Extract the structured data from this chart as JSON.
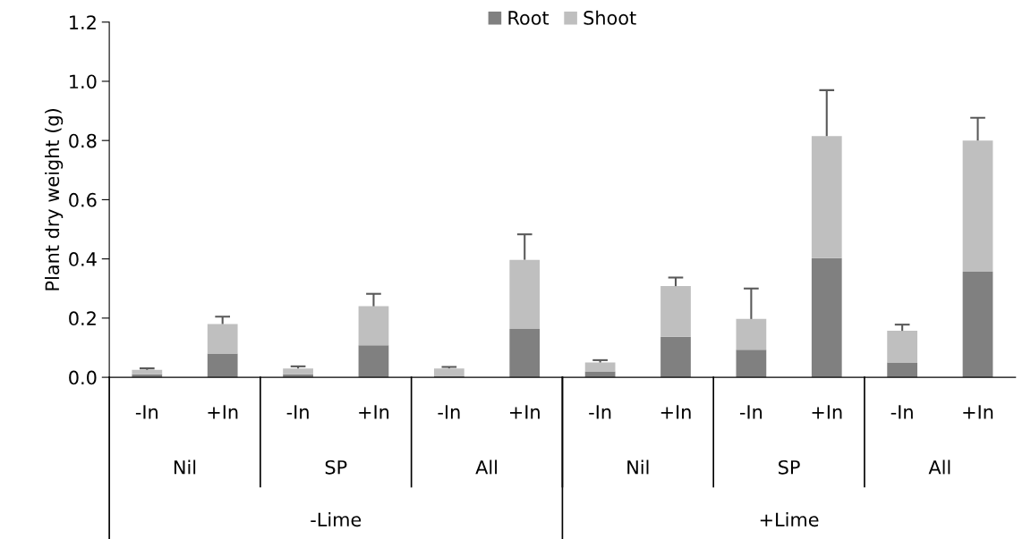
{
  "chart_data": {
    "type": "bar",
    "stacked": true,
    "ylabel": "Plant dry weight (g)",
    "categories": [
      "-In",
      "+In",
      "-In",
      "+In",
      "-In",
      "+In",
      "-In",
      "+In",
      "-In",
      "+In",
      "-In",
      "+In"
    ],
    "series": [
      {
        "name": "Root",
        "color": "#808080",
        "values": [
          0.01,
          0.08,
          0.01,
          0.108,
          0.005,
          0.163,
          0.02,
          0.137,
          0.093,
          0.403,
          0.05,
          0.357
        ]
      },
      {
        "name": "Shoot",
        "color": "#bfbfbf",
        "values": [
          0.015,
          0.1,
          0.02,
          0.132,
          0.025,
          0.234,
          0.03,
          0.171,
          0.104,
          0.412,
          0.107,
          0.443
        ],
        "errors": [
          [
            0.025,
            0.03
          ],
          [
            0.18,
            0.205
          ],
          [
            0.03,
            0.037
          ],
          [
            0.24,
            0.282
          ],
          [
            0.03,
            0.035
          ],
          [
            0.397,
            0.483
          ],
          [
            0.05,
            0.058
          ],
          [
            0.308,
            0.337
          ],
          [
            0.197,
            0.3
          ],
          [
            0.815,
            0.97
          ],
          [
            0.157,
            0.178
          ],
          [
            0.8,
            0.877
          ]
        ]
      }
    ],
    "annotations": [
      "Nil",
      "SP",
      "All",
      "Nil",
      "SP",
      "All",
      "-Lime",
      "+Lime"
    ],
    "ylim": [
      0,
      1.2
    ],
    "yticks": [
      {
        "value": 0,
        "label": "0.0"
      },
      {
        "value": 0.2,
        "label": "0.2"
      },
      {
        "value": 0.4,
        "label": "0.4"
      },
      {
        "value": 0.6,
        "label": "0.6"
      },
      {
        "value": 0.8,
        "label": "0.8"
      },
      {
        "value": 1.0,
        "label": "1.0"
      },
      {
        "value": 1.2,
        "label": "1.2"
      }
    ],
    "grid": false,
    "legend": "top"
  }
}
